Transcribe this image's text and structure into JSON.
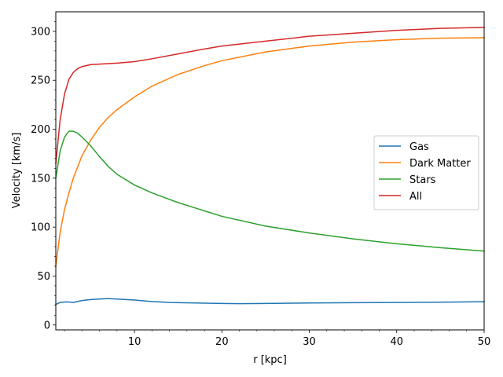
{
  "chart_data": {
    "type": "line",
    "xlabel": "r [kpc]",
    "ylabel": "Velocity [km/s]",
    "xlim": [
      1,
      50
    ],
    "ylim": [
      -5,
      320
    ],
    "xticks": [
      "10",
      "20",
      "30",
      "40",
      "50"
    ],
    "yticks": [
      "0",
      "50",
      "100",
      "150",
      "200",
      "250",
      "300"
    ],
    "legend_position": "center-right",
    "grid": false,
    "series": [
      {
        "name": "Gas",
        "color": "#1f77b4",
        "points": [
          [
            1.0,
            21
          ],
          [
            1.5,
            23
          ],
          [
            2.0,
            23.5
          ],
          [
            2.5,
            23.5
          ],
          [
            3.0,
            23
          ],
          [
            3.5,
            24
          ],
          [
            4.0,
            25
          ],
          [
            5.0,
            26
          ],
          [
            6.0,
            26.5
          ],
          [
            7.0,
            27
          ],
          [
            8.0,
            26.5
          ],
          [
            10.0,
            25.5
          ],
          [
            12.0,
            24
          ],
          [
            14.0,
            23
          ],
          [
            17.0,
            22.5
          ],
          [
            20.0,
            22
          ],
          [
            22.0,
            21.8
          ],
          [
            25.0,
            22
          ],
          [
            30.0,
            22.5
          ],
          [
            35.0,
            22.8
          ],
          [
            40.0,
            23
          ],
          [
            45.0,
            23.3
          ],
          [
            50.0,
            23.8
          ]
        ]
      },
      {
        "name": "Dark Matter",
        "color": "#ff7f0e",
        "points": [
          [
            1.0,
            60
          ],
          [
            1.5,
            95
          ],
          [
            2.0,
            118
          ],
          [
            2.5,
            135
          ],
          [
            3.0,
            150
          ],
          [
            4.0,
            173
          ],
          [
            5.0,
            189
          ],
          [
            6.0,
            202
          ],
          [
            7.0,
            212
          ],
          [
            8.0,
            220
          ],
          [
            10.0,
            233
          ],
          [
            12.0,
            244
          ],
          [
            15.0,
            256
          ],
          [
            18.0,
            265
          ],
          [
            20.0,
            270
          ],
          [
            25.0,
            279
          ],
          [
            30.0,
            285
          ],
          [
            35.0,
            289
          ],
          [
            40.0,
            291.5
          ],
          [
            45.0,
            293
          ],
          [
            50.0,
            293.5
          ]
        ]
      },
      {
        "name": "Stars",
        "color": "#2ca02c",
        "points": [
          [
            1.0,
            150
          ],
          [
            1.5,
            178
          ],
          [
            2.0,
            192
          ],
          [
            2.5,
            198
          ],
          [
            3.0,
            198
          ],
          [
            3.5,
            196
          ],
          [
            4.0,
            192
          ],
          [
            5.0,
            183
          ],
          [
            6.0,
            172
          ],
          [
            7.0,
            162
          ],
          [
            8.0,
            154
          ],
          [
            10.0,
            143
          ],
          [
            12.0,
            135
          ],
          [
            15.0,
            125
          ],
          [
            20.0,
            111
          ],
          [
            25.0,
            101
          ],
          [
            30.0,
            94
          ],
          [
            35.0,
            88
          ],
          [
            40.0,
            83
          ],
          [
            45.0,
            79
          ],
          [
            50.0,
            75.5
          ]
        ]
      },
      {
        "name": "All",
        "color": "#d62728",
        "points": [
          [
            1.0,
            165
          ],
          [
            1.5,
            210
          ],
          [
            2.0,
            236
          ],
          [
            2.5,
            251
          ],
          [
            3.0,
            258
          ],
          [
            3.5,
            262
          ],
          [
            4.0,
            264
          ],
          [
            5.0,
            266
          ],
          [
            6.0,
            266.5
          ],
          [
            7.0,
            267
          ],
          [
            8.0,
            267.5
          ],
          [
            10.0,
            269
          ],
          [
            12.0,
            272
          ],
          [
            15.0,
            277
          ],
          [
            18.0,
            282
          ],
          [
            20.0,
            285
          ],
          [
            25.0,
            290
          ],
          [
            30.0,
            295
          ],
          [
            35.0,
            298
          ],
          [
            40.0,
            301
          ],
          [
            45.0,
            303
          ],
          [
            50.0,
            304
          ]
        ]
      }
    ]
  }
}
